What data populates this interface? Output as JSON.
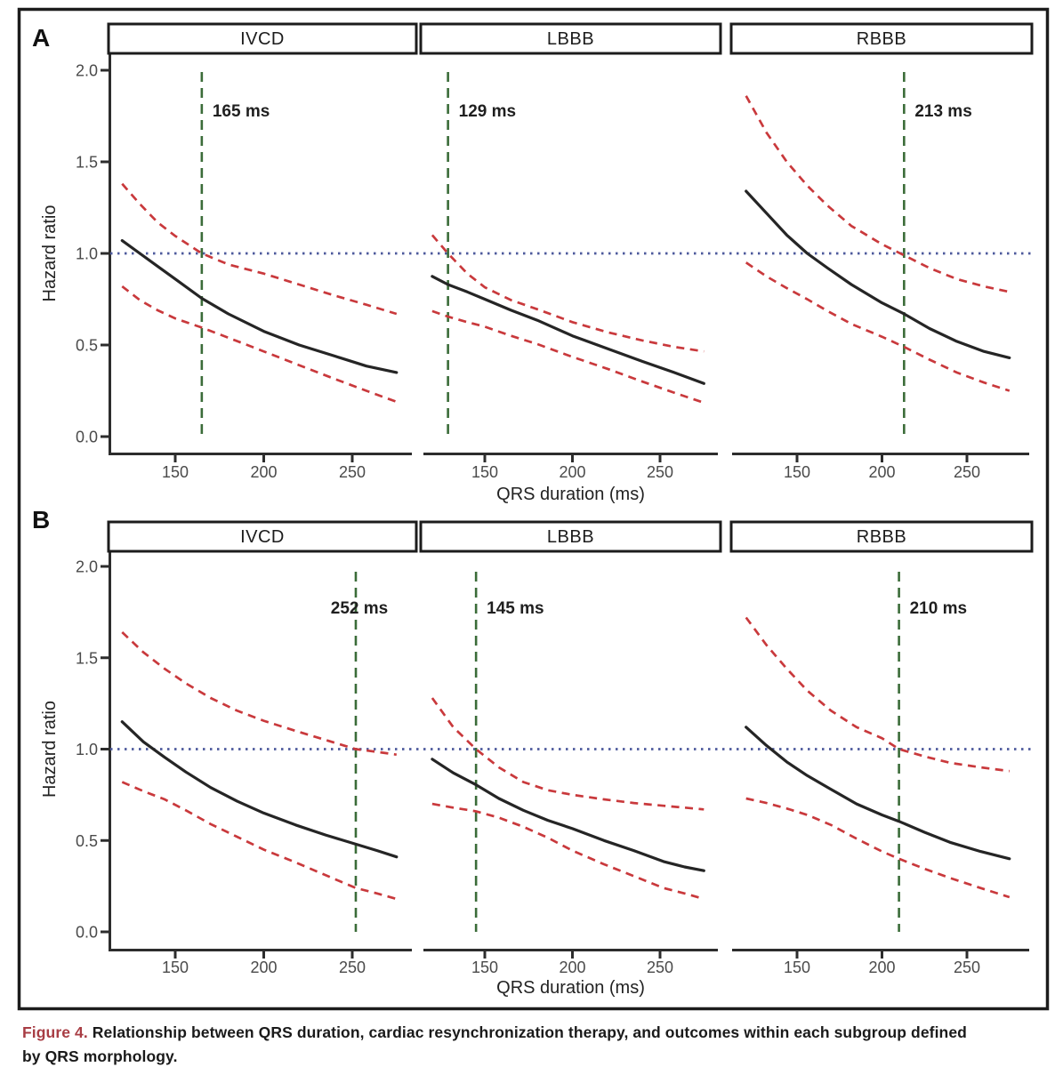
{
  "caption": {
    "prefix": "Figure 4.",
    "line1": " Relationship between QRS duration, cardiac resynchronization therapy, and outcomes within each subgroup defined",
    "line2": "by QRS morphology."
  },
  "colors": {
    "estimate": "#252525",
    "confidence_interval": "#c9393c",
    "reference_line": "#4d5a9c",
    "threshold_line": "#3b6c39",
    "axis": "#2d2d2d",
    "tick_label": "#4a4a4a",
    "caption_accent": "#a83d44"
  },
  "axes": {
    "x_label": "QRS duration (ms)",
    "y_label": "Hazard ratio",
    "x_ticks": [
      150,
      200,
      250
    ],
    "y_ticks": [
      "2.0",
      "1.5",
      "1.0",
      "0.5",
      "0.0"
    ],
    "x_domain": [
      120,
      275
    ],
    "y_domain": [
      0.0,
      2.0
    ],
    "reference_hr": 1.0
  },
  "chart_data": [
    {
      "type": "line",
      "row_label": "A",
      "panels": [
        {
          "title": "IVCD",
          "threshold_ms": 165,
          "threshold_label": "165 ms",
          "label_pos": "right",
          "series": {
            "estimate": [
              [
                120,
                1.07
              ],
              [
                130,
                1.0
              ],
              [
                140,
                0.93
              ],
              [
                150,
                0.86
              ],
              [
                165,
                0.755
              ],
              [
                180,
                0.67
              ],
              [
                200,
                0.575
              ],
              [
                220,
                0.5
              ],
              [
                240,
                0.44
              ],
              [
                258,
                0.385
              ],
              [
                275,
                0.35
              ]
            ],
            "ci_upper": [
              [
                120,
                1.38
              ],
              [
                130,
                1.27
              ],
              [
                140,
                1.17
              ],
              [
                150,
                1.095
              ],
              [
                165,
                1.0
              ],
              [
                180,
                0.94
              ],
              [
                200,
                0.89
              ],
              [
                220,
                0.83
              ],
              [
                240,
                0.77
              ],
              [
                258,
                0.72
              ],
              [
                275,
                0.67
              ]
            ],
            "ci_lower": [
              [
                120,
                0.82
              ],
              [
                130,
                0.745
              ],
              [
                140,
                0.69
              ],
              [
                150,
                0.645
              ],
              [
                165,
                0.595
              ],
              [
                180,
                0.54
              ],
              [
                200,
                0.465
              ],
              [
                220,
                0.39
              ],
              [
                240,
                0.315
              ],
              [
                258,
                0.25
              ],
              [
                275,
                0.19
              ]
            ]
          }
        },
        {
          "title": "LBBB",
          "threshold_ms": 129,
          "threshold_label": "129 ms",
          "label_pos": "right",
          "series": {
            "estimate": [
              [
                120,
                0.875
              ],
              [
                129,
                0.83
              ],
              [
                140,
                0.79
              ],
              [
                150,
                0.75
              ],
              [
                165,
                0.69
              ],
              [
                180,
                0.635
              ],
              [
                200,
                0.55
              ],
              [
                220,
                0.48
              ],
              [
                240,
                0.41
              ],
              [
                258,
                0.35
              ],
              [
                275,
                0.29
              ]
            ],
            "ci_upper": [
              [
                120,
                1.1
              ],
              [
                129,
                1.0
              ],
              [
                140,
                0.89
              ],
              [
                150,
                0.815
              ],
              [
                165,
                0.745
              ],
              [
                180,
                0.695
              ],
              [
                200,
                0.625
              ],
              [
                220,
                0.57
              ],
              [
                240,
                0.525
              ],
              [
                258,
                0.49
              ],
              [
                275,
                0.465
              ]
            ],
            "ci_lower": [
              [
                120,
                0.685
              ],
              [
                129,
                0.655
              ],
              [
                140,
                0.625
              ],
              [
                150,
                0.6
              ],
              [
                165,
                0.55
              ],
              [
                180,
                0.505
              ],
              [
                200,
                0.435
              ],
              [
                220,
                0.37
              ],
              [
                240,
                0.3
              ],
              [
                258,
                0.24
              ],
              [
                275,
                0.185
              ]
            ]
          }
        },
        {
          "title": "RBBB",
          "threshold_ms": 213,
          "threshold_label": "213 ms",
          "label_pos": "right",
          "series": {
            "estimate": [
              [
                120,
                1.34
              ],
              [
                132,
                1.22
              ],
              [
                144,
                1.1
              ],
              [
                156,
                1.0
              ],
              [
                168,
                0.92
              ],
              [
                182,
                0.83
              ],
              [
                200,
                0.73
              ],
              [
                213,
                0.67
              ],
              [
                228,
                0.59
              ],
              [
                244,
                0.52
              ],
              [
                260,
                0.465
              ],
              [
                275,
                0.43
              ]
            ],
            "ci_upper": [
              [
                120,
                1.86
              ],
              [
                132,
                1.66
              ],
              [
                144,
                1.5
              ],
              [
                156,
                1.37
              ],
              [
                168,
                1.26
              ],
              [
                182,
                1.15
              ],
              [
                200,
                1.05
              ],
              [
                213,
                0.99
              ],
              [
                228,
                0.92
              ],
              [
                244,
                0.86
              ],
              [
                260,
                0.82
              ],
              [
                275,
                0.79
              ]
            ],
            "ci_lower": [
              [
                120,
                0.95
              ],
              [
                132,
                0.875
              ],
              [
                144,
                0.81
              ],
              [
                156,
                0.75
              ],
              [
                168,
                0.685
              ],
              [
                182,
                0.615
              ],
              [
                200,
                0.545
              ],
              [
                213,
                0.49
              ],
              [
                228,
                0.42
              ],
              [
                244,
                0.35
              ],
              [
                260,
                0.295
              ],
              [
                275,
                0.25
              ]
            ]
          }
        }
      ]
    },
    {
      "type": "line",
      "row_label": "B",
      "panels": [
        {
          "title": "IVCD",
          "threshold_ms": 252,
          "threshold_label": "252 ms",
          "label_pos": "center",
          "series": {
            "estimate": [
              [
                120,
                1.15
              ],
              [
                132,
                1.04
              ],
              [
                144,
                0.955
              ],
              [
                156,
                0.875
              ],
              [
                170,
                0.79
              ],
              [
                185,
                0.715
              ],
              [
                200,
                0.65
              ],
              [
                218,
                0.585
              ],
              [
                235,
                0.53
              ],
              [
                252,
                0.48
              ],
              [
                264,
                0.445
              ],
              [
                275,
                0.41
              ]
            ],
            "ci_upper": [
              [
                120,
                1.64
              ],
              [
                132,
                1.53
              ],
              [
                144,
                1.44
              ],
              [
                156,
                1.36
              ],
              [
                170,
                1.28
              ],
              [
                185,
                1.21
              ],
              [
                200,
                1.155
              ],
              [
                218,
                1.1
              ],
              [
                235,
                1.05
              ],
              [
                252,
                1.0
              ],
              [
                264,
                0.985
              ],
              [
                275,
                0.97
              ]
            ],
            "ci_lower": [
              [
                120,
                0.82
              ],
              [
                132,
                0.77
              ],
              [
                144,
                0.725
              ],
              [
                156,
                0.665
              ],
              [
                170,
                0.59
              ],
              [
                185,
                0.52
              ],
              [
                200,
                0.45
              ],
              [
                218,
                0.38
              ],
              [
                235,
                0.31
              ],
              [
                252,
                0.24
              ],
              [
                264,
                0.21
              ],
              [
                275,
                0.18
              ]
            ]
          }
        },
        {
          "title": "LBBB",
          "threshold_ms": 145,
          "threshold_label": "145 ms",
          "label_pos": "right",
          "series": {
            "estimate": [
              [
                120,
                0.945
              ],
              [
                132,
                0.87
              ],
              [
                145,
                0.805
              ],
              [
                158,
                0.73
              ],
              [
                172,
                0.665
              ],
              [
                186,
                0.61
              ],
              [
                200,
                0.565
              ],
              [
                218,
                0.5
              ],
              [
                235,
                0.445
              ],
              [
                252,
                0.385
              ],
              [
                264,
                0.355
              ],
              [
                275,
                0.335
              ]
            ],
            "ci_upper": [
              [
                120,
                1.28
              ],
              [
                132,
                1.12
              ],
              [
                145,
                1.0
              ],
              [
                158,
                0.9
              ],
              [
                172,
                0.82
              ],
              [
                186,
                0.775
              ],
              [
                200,
                0.75
              ],
              [
                218,
                0.725
              ],
              [
                235,
                0.705
              ],
              [
                252,
                0.69
              ],
              [
                264,
                0.68
              ],
              [
                275,
                0.67
              ]
            ],
            "ci_lower": [
              [
                120,
                0.7
              ],
              [
                132,
                0.68
              ],
              [
                145,
                0.66
              ],
              [
                158,
                0.625
              ],
              [
                172,
                0.575
              ],
              [
                186,
                0.515
              ],
              [
                200,
                0.445
              ],
              [
                218,
                0.37
              ],
              [
                235,
                0.305
              ],
              [
                252,
                0.24
              ],
              [
                264,
                0.21
              ],
              [
                275,
                0.18
              ]
            ]
          }
        },
        {
          "title": "RBBB",
          "threshold_ms": 210,
          "threshold_label": "210 ms",
          "label_pos": "right",
          "series": {
            "estimate": [
              [
                120,
                1.12
              ],
              [
                132,
                1.02
              ],
              [
                144,
                0.93
              ],
              [
                156,
                0.855
              ],
              [
                170,
                0.78
              ],
              [
                185,
                0.7
              ],
              [
                200,
                0.64
              ],
              [
                210,
                0.605
              ],
              [
                225,
                0.545
              ],
              [
                240,
                0.49
              ],
              [
                258,
                0.44
              ],
              [
                275,
                0.4
              ]
            ],
            "ci_upper": [
              [
                120,
                1.72
              ],
              [
                132,
                1.57
              ],
              [
                144,
                1.44
              ],
              [
                156,
                1.32
              ],
              [
                170,
                1.21
              ],
              [
                185,
                1.12
              ],
              [
                200,
                1.06
              ],
              [
                210,
                1.0
              ],
              [
                225,
                0.96
              ],
              [
                240,
                0.925
              ],
              [
                258,
                0.9
              ],
              [
                275,
                0.88
              ]
            ],
            "ci_lower": [
              [
                120,
                0.73
              ],
              [
                132,
                0.705
              ],
              [
                144,
                0.675
              ],
              [
                156,
                0.64
              ],
              [
                170,
                0.585
              ],
              [
                185,
                0.51
              ],
              [
                200,
                0.44
              ],
              [
                210,
                0.4
              ],
              [
                225,
                0.345
              ],
              [
                240,
                0.295
              ],
              [
                258,
                0.24
              ],
              [
                275,
                0.19
              ]
            ]
          }
        }
      ]
    }
  ]
}
